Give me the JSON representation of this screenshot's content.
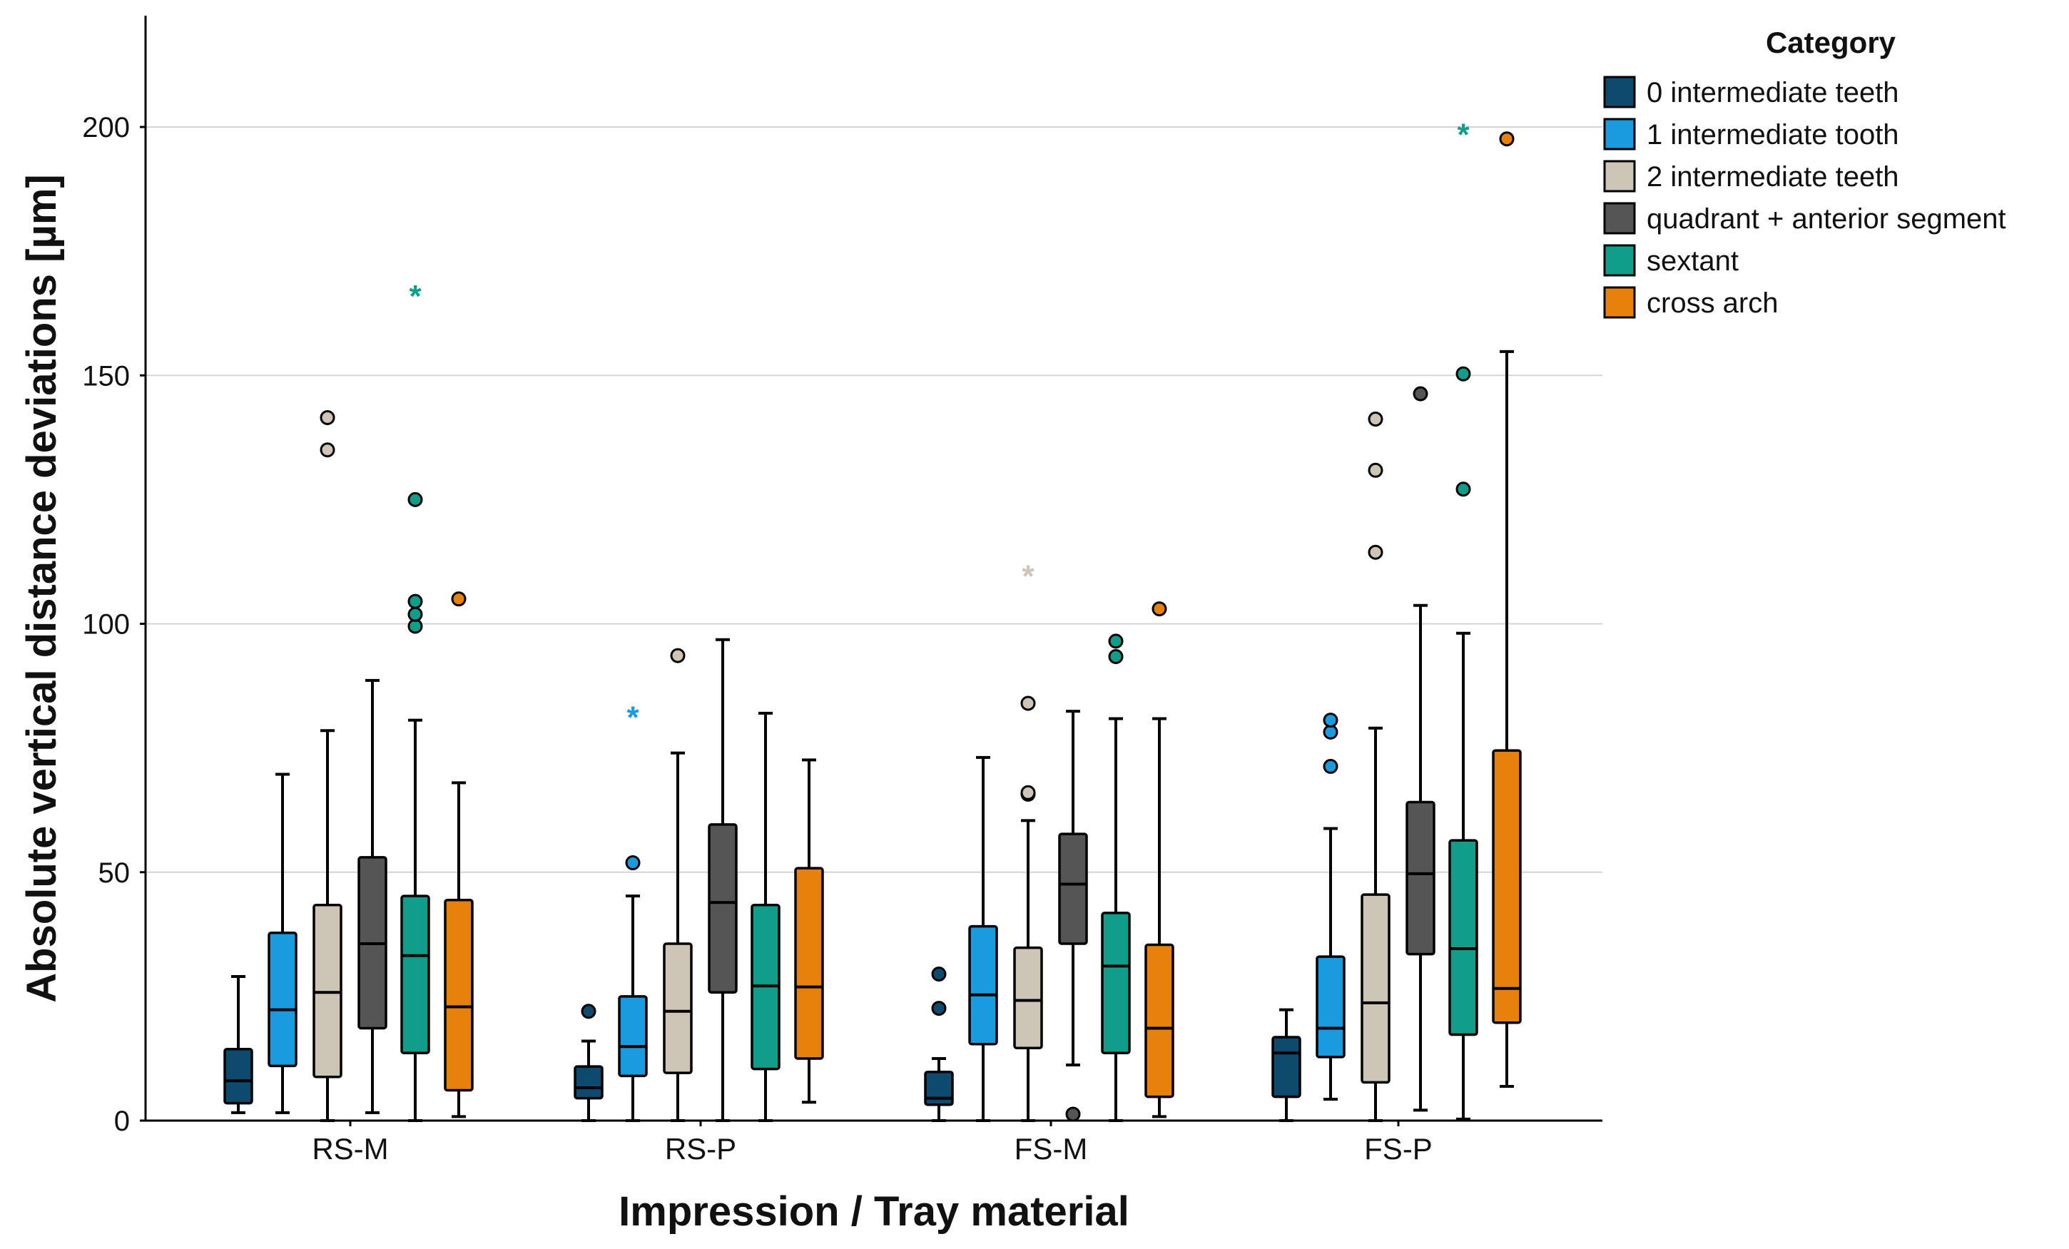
{
  "chart_data": {
    "type": "box",
    "title": "",
    "xlabel": "Impression / Tray material",
    "ylabel": "Absolute vertical distance deviations [µm]",
    "ylim": [
      0,
      222
    ],
    "yticks": [
      0,
      50,
      100,
      150,
      200
    ],
    "grid": "horizontal",
    "legend": {
      "title": "Category",
      "placement": "top-right"
    },
    "categories": [
      "RS-M",
      "RS-P",
      "FS-M",
      "FS-P"
    ],
    "series": [
      {
        "name": "0 intermediate teeth",
        "color": "#0d4a6e",
        "boxes": [
          {
            "min": 1.6,
            "q1": 3.5,
            "median": 8,
            "q3": 14.4,
            "max": 29,
            "outliers": [],
            "extremes": []
          },
          {
            "min": 0,
            "q1": 4.5,
            "median": 6.6,
            "q3": 10.9,
            "max": 16,
            "outliers": [
              22
            ],
            "extremes": []
          },
          {
            "min": 0,
            "q1": 3.2,
            "median": 4.5,
            "q3": 9.8,
            "max": 12.5,
            "outliers": [
              22.6,
              29.5
            ],
            "extremes": []
          },
          {
            "min": 0,
            "q1": 4.8,
            "median": 13.6,
            "q3": 16.8,
            "max": 22.3,
            "outliers": [],
            "extremes": []
          }
        ]
      },
      {
        "name": "1 intermediate tooth",
        "color": "#1a9be0",
        "boxes": [
          {
            "min": 1.6,
            "q1": 11,
            "median": 22.3,
            "q3": 37.8,
            "max": 69.7,
            "outliers": [],
            "extremes": []
          },
          {
            "min": 0,
            "q1": 9,
            "median": 14.9,
            "q3": 25,
            "max": 45.2,
            "outliers": [
              51.9
            ],
            "extremes": [
              82.2
            ]
          },
          {
            "min": 0,
            "q1": 15.4,
            "median": 25.3,
            "q3": 39.1,
            "max": 73.1,
            "outliers": [],
            "extremes": []
          },
          {
            "min": 4.3,
            "q1": 12.8,
            "median": 18.6,
            "q3": 33,
            "max": 58.8,
            "outliers": [
              71.3,
              78.2,
              80.6
            ],
            "extremes": []
          }
        ]
      },
      {
        "name": "2 intermediate teeth",
        "color": "#cdc5b5",
        "boxes": [
          {
            "min": 0,
            "q1": 8.8,
            "median": 25.8,
            "q3": 43.4,
            "max": 78.5,
            "outliers": [
              135,
              141.5
            ],
            "extremes": []
          },
          {
            "min": 0,
            "q1": 9.6,
            "median": 22,
            "q3": 35.6,
            "max": 74,
            "outliers": [
              93.6
            ],
            "extremes": []
          },
          {
            "min": 0,
            "q1": 14.6,
            "median": 24.2,
            "q3": 34.8,
            "max": 60.4,
            "outliers": [
              65.7,
              66,
              84
            ],
            "extremes": [
              110.6
            ]
          },
          {
            "min": 0,
            "q1": 7.7,
            "median": 23.7,
            "q3": 45.5,
            "max": 79,
            "outliers": [
              114.4,
              130.9,
              141.2
            ],
            "extremes": []
          }
        ]
      },
      {
        "name": "quadrant + anterior segment",
        "color": "#555555",
        "boxes": [
          {
            "min": 1.6,
            "q1": 18.6,
            "median": 35.6,
            "q3": 53,
            "max": 88.6,
            "outliers": [],
            "extremes": []
          },
          {
            "min": 0,
            "q1": 25.8,
            "median": 43.9,
            "q3": 59.6,
            "max": 96.8,
            "outliers": [],
            "extremes": []
          },
          {
            "min": 11.2,
            "q1": 35.6,
            "median": 47.6,
            "q3": 57.7,
            "max": 82.4,
            "outliers": [
              1.3
            ],
            "extremes": []
          },
          {
            "min": 2.1,
            "q1": 33.5,
            "median": 49.7,
            "q3": 64.1,
            "max": 103.7,
            "outliers": [
              146.3
            ],
            "extremes": []
          }
        ]
      },
      {
        "name": "sextant",
        "color": "#109e8b",
        "boxes": [
          {
            "min": 0,
            "q1": 13.6,
            "median": 33.2,
            "q3": 45.2,
            "max": 80.6,
            "outliers": [
              99.5,
              101.9,
              104.5,
              125
            ],
            "extremes": [
              167
            ]
          },
          {
            "min": 0,
            "q1": 10.4,
            "median": 27.1,
            "q3": 43.4,
            "max": 82,
            "outliers": [],
            "extremes": []
          },
          {
            "min": 0,
            "q1": 13.6,
            "median": 31.1,
            "q3": 41.8,
            "max": 80.9,
            "outliers": [
              93.4,
              96.5
            ],
            "extremes": []
          },
          {
            "min": 0.3,
            "q1": 17.3,
            "median": 34.6,
            "q3": 56.4,
            "max": 98.1,
            "outliers": [
              127.1,
              150.3
            ],
            "extremes": [
              199.5
            ]
          }
        ]
      },
      {
        "name": "cross arch",
        "color": "#e8810b",
        "boxes": [
          {
            "min": 0.8,
            "q1": 6.1,
            "median": 22.9,
            "q3": 44.4,
            "max": 68,
            "outliers": [
              105
            ],
            "extremes": []
          },
          {
            "min": 3.7,
            "q1": 12.5,
            "median": 26.9,
            "q3": 50.8,
            "max": 72.6,
            "outliers": [],
            "extremes": []
          },
          {
            "min": 0.8,
            "q1": 4.8,
            "median": 18.6,
            "q3": 35.4,
            "max": 80.9,
            "outliers": [
              103
            ],
            "extremes": []
          },
          {
            "min": 6.9,
            "q1": 19.7,
            "median": 26.6,
            "q3": 74.5,
            "max": 154.8,
            "outliers": [
              197.6
            ],
            "extremes": []
          }
        ]
      }
    ]
  }
}
